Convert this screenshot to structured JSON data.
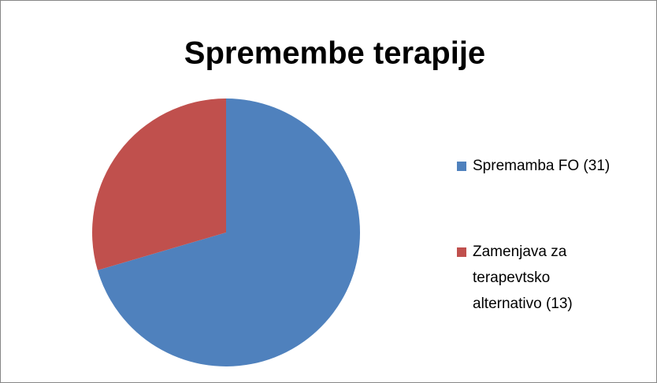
{
  "chart_data": {
    "type": "pie",
    "title": "Spremembe terapije",
    "categories": [
      "Spremamba FO (31)",
      "Zamenjava za terapevtsko alternativo (13)"
    ],
    "values": [
      31,
      13
    ],
    "colors": [
      "#4f81bd",
      "#c0504d"
    ],
    "legend": "right"
  }
}
